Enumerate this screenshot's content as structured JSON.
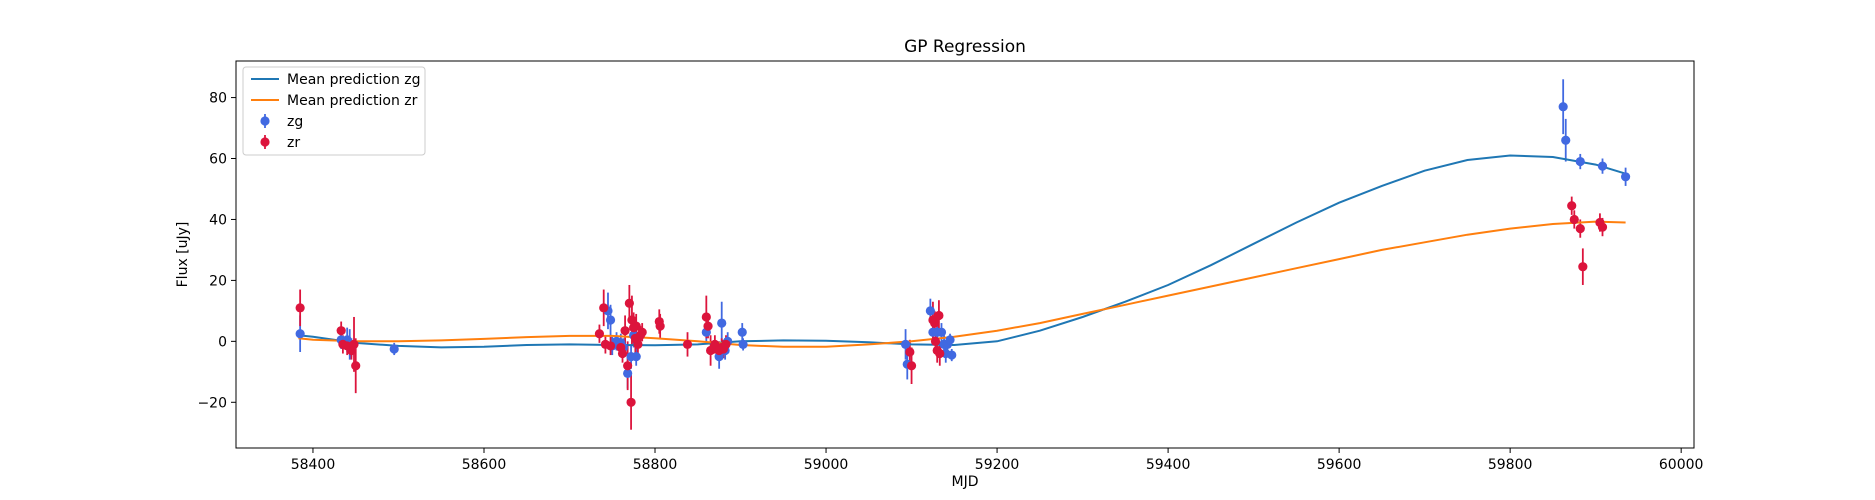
{
  "chart_data": {
    "type": "scatter",
    "title": "GP Regression",
    "xlabel": "MJD",
    "ylabel": "Flux [uJy]",
    "xlim": [
      58310,
      60015
    ],
    "ylim": [
      -35,
      92
    ],
    "xticks": [
      58400,
      58600,
      58800,
      59000,
      59200,
      59400,
      59600,
      59800,
      60000
    ],
    "yticks": [
      -20,
      0,
      20,
      40,
      60,
      80
    ],
    "grid": false,
    "legend_position": "top-left",
    "legend": [
      {
        "label": "Mean prediction zg",
        "kind": "line",
        "color": "#1f77b4"
      },
      {
        "label": "Mean prediction zr",
        "kind": "line",
        "color": "#ff7f0e"
      },
      {
        "label": "zg",
        "kind": "marker",
        "color": "#4169e1"
      },
      {
        "label": "zr",
        "kind": "marker",
        "color": "#dc143c"
      }
    ],
    "mean_lines": [
      {
        "band": "zg",
        "color": "#1f77b4",
        "x": [
          58383,
          58400,
          58450,
          58500,
          58550,
          58600,
          58650,
          58700,
          58750,
          58800,
          58850,
          58900,
          58950,
          59000,
          59050,
          59100,
          59150,
          59200,
          59250,
          59300,
          59350,
          59400,
          59450,
          59500,
          59550,
          59600,
          59650,
          59700,
          59750,
          59800,
          59850,
          59900,
          59935
        ],
        "y": [
          2,
          1.5,
          -0.5,
          -1.5,
          -2,
          -1.8,
          -1.2,
          -1,
          -1.2,
          -1.3,
          -1,
          0,
          0.3,
          0.2,
          -0.3,
          -1,
          -1.2,
          0,
          3.5,
          8,
          13,
          18.5,
          25,
          32,
          39,
          45.5,
          51,
          56,
          59.5,
          61,
          60.5,
          58,
          55
        ]
      },
      {
        "band": "zr",
        "color": "#ff7f0e",
        "x": [
          58383,
          58400,
          58450,
          58500,
          58550,
          58600,
          58650,
          58700,
          58750,
          58800,
          58850,
          58900,
          58950,
          59000,
          59050,
          59100,
          59150,
          59200,
          59250,
          59300,
          59350,
          59400,
          59450,
          59500,
          59550,
          59600,
          59650,
          59700,
          59750,
          59800,
          59850,
          59900,
          59935
        ],
        "y": [
          1,
          0.5,
          0,
          0,
          0.3,
          0.8,
          1.4,
          1.8,
          1.8,
          1,
          0,
          -1.2,
          -1.8,
          -1.8,
          -1,
          0,
          1.5,
          3.5,
          6,
          9,
          12,
          15,
          18,
          21,
          24,
          27,
          30,
          32.5,
          35,
          37,
          38.5,
          39.3,
          39
        ]
      }
    ],
    "series": [
      {
        "name": "zg",
        "color": "#4169e1",
        "points": [
          [
            58385,
            2.5,
            6
          ],
          [
            58433,
            0.5,
            3
          ],
          [
            58440,
            0.5,
            4
          ],
          [
            58443,
            -1,
            5
          ],
          [
            58445,
            -2,
            3
          ],
          [
            58495,
            -2.5,
            2
          ],
          [
            58745,
            10,
            6
          ],
          [
            58748,
            7,
            5
          ],
          [
            58750,
            -1.5,
            3
          ],
          [
            58755,
            0,
            3
          ],
          [
            58760,
            -0.5,
            3
          ],
          [
            58763,
            -2,
            3
          ],
          [
            58768,
            -10.5,
            5
          ],
          [
            58772,
            -5,
            4
          ],
          [
            58775,
            2,
            4
          ],
          [
            58778,
            -5,
            3
          ],
          [
            58860,
            3,
            3
          ],
          [
            58875,
            -5,
            4
          ],
          [
            58878,
            6,
            7
          ],
          [
            58882,
            -3,
            3
          ],
          [
            58885,
            0,
            3
          ],
          [
            58902,
            3,
            3
          ],
          [
            58903,
            -1,
            2
          ],
          [
            59093,
            -1,
            5
          ],
          [
            59095,
            -7.5,
            5
          ],
          [
            59122,
            10,
            4
          ],
          [
            59125,
            3,
            3
          ],
          [
            59130,
            3,
            4
          ],
          [
            59135,
            3,
            3
          ],
          [
            59138,
            -1,
            3
          ],
          [
            59140,
            -4,
            3
          ],
          [
            59142,
            -1,
            2
          ],
          [
            59145,
            0.5,
            2
          ],
          [
            59147,
            -4.5,
            2
          ],
          [
            59862,
            77,
            9
          ],
          [
            59865,
            66,
            7
          ],
          [
            59882,
            59,
            2.5
          ],
          [
            59908,
            57.5,
            2.5
          ],
          [
            59935,
            54,
            3
          ]
        ]
      },
      {
        "name": "zr",
        "color": "#dc143c",
        "points": [
          [
            58385,
            11,
            6
          ],
          [
            58433,
            3.5,
            3
          ],
          [
            58435,
            -1,
            3
          ],
          [
            58440,
            -1.5,
            3
          ],
          [
            58445,
            -3,
            3
          ],
          [
            58448,
            -1,
            9
          ],
          [
            58450,
            -8,
            9
          ],
          [
            58735,
            2.5,
            3
          ],
          [
            58740,
            11,
            6
          ],
          [
            58742,
            -1,
            3
          ],
          [
            58748,
            -1.5,
            3
          ],
          [
            58760,
            -2,
            3
          ],
          [
            58762,
            -4,
            3
          ],
          [
            58765,
            3.5,
            5
          ],
          [
            58768,
            -8,
            8
          ],
          [
            58770,
            12.5,
            6
          ],
          [
            58772,
            -20,
            9
          ],
          [
            58773,
            7,
            8
          ],
          [
            58775,
            4.5,
            5
          ],
          [
            58777,
            1,
            5
          ],
          [
            58778,
            5,
            4
          ],
          [
            58780,
            -1,
            3
          ],
          [
            58783,
            2,
            3
          ],
          [
            58785,
            3,
            3
          ],
          [
            58805,
            6.5,
            4
          ],
          [
            58806,
            5,
            4
          ],
          [
            58838,
            -1,
            4
          ],
          [
            58860,
            8,
            7
          ],
          [
            58862,
            5,
            4
          ],
          [
            58865,
            -3,
            5
          ],
          [
            58870,
            -1,
            3
          ],
          [
            58875,
            -3,
            3
          ],
          [
            58878,
            -2,
            3
          ],
          [
            58880,
            -2.5,
            3
          ],
          [
            58883,
            -1,
            3
          ],
          [
            59098,
            -3.5,
            4
          ],
          [
            59100,
            -8,
            6
          ],
          [
            59125,
            7,
            6
          ],
          [
            59127,
            6,
            4
          ],
          [
            59128,
            0,
            4
          ],
          [
            59130,
            -3,
            4
          ],
          [
            59132,
            8.5,
            5
          ],
          [
            59133,
            -4,
            4
          ],
          [
            59872,
            44.5,
            3
          ],
          [
            59875,
            40,
            3
          ],
          [
            59882,
            37,
            3
          ],
          [
            59885,
            24.5,
            6
          ],
          [
            59905,
            39,
            3
          ],
          [
            59908,
            37.5,
            3
          ]
        ]
      }
    ]
  }
}
